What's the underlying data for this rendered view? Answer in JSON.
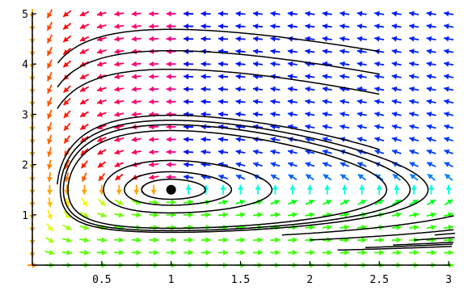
{
  "chart_data": {
    "type": "vector-field",
    "title": "",
    "xlabel": "",
    "ylabel": "",
    "xlim": [
      0,
      3
    ],
    "ylim": [
      0,
      5
    ],
    "x_ticks": [
      0.5,
      1,
      1.5,
      2,
      2.5,
      3
    ],
    "x_tick_labels": [
      "0.5",
      "1",
      "1.5",
      "2",
      "2.5",
      "3"
    ],
    "y_ticks": [
      1,
      2,
      3,
      4,
      5
    ],
    "y_tick_labels": [
      "1",
      "2",
      "3",
      "4",
      "5"
    ],
    "grid": false,
    "legend": "none",
    "field": {
      "equations": "dx/dt = x(3 - 2y), dy/dt = y(x - 1)",
      "color_by": "direction",
      "arrow_grid": {
        "x_start": 0,
        "x_step": 0.125,
        "x_count": 25,
        "y_start": 0,
        "y_step": 0.25,
        "y_count": 21
      }
    },
    "equilibrium": {
      "x": 1,
      "y": 1.5
    },
    "trajectories": {
      "color": "#000000",
      "start_points": [
        [
          2.5,
          4.25
        ],
        [
          2.5,
          3.8
        ],
        [
          2.5,
          3.4
        ],
        [
          2.5,
          2.3
        ],
        [
          2.5,
          2.15
        ],
        [
          2.5,
          2.0
        ],
        [
          2.9,
          0.6
        ],
        [
          2.75,
          0.5
        ],
        [
          2.6,
          0.4
        ],
        [
          2.4,
          0.35
        ],
        [
          2.2,
          0.3
        ],
        [
          2.0,
          0.5
        ],
        [
          1.8,
          0.6
        ],
        [
          1.6,
          0.8
        ],
        [
          1.35,
          1.1
        ],
        [
          1.25,
          1.25
        ],
        [
          1.15,
          1.35
        ]
      ]
    },
    "colors": {
      "axis": "#000000",
      "background": "#ffffff",
      "trajectory": "#000000"
    }
  }
}
